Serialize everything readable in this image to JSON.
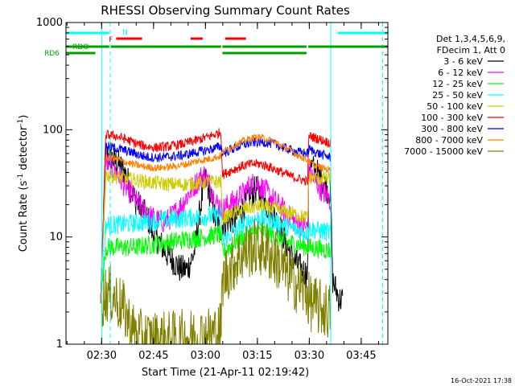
{
  "chart_data": {
    "type": "line",
    "title": "RHESSI Observing Summary Count Rates",
    "xlabel": "Start Time (21-Apr-11 02:19:42)",
    "ylabel": "Count Rate (s-1 detector-1)",
    "ylabel_parts": {
      "main": "Count Rate (s",
      "sup1": "-1",
      "mid": " detector",
      "sup2": "-1",
      "end": ")"
    },
    "yscale": "log",
    "ylim": [
      1,
      1000
    ],
    "xlim_minutes": [
      0,
      93
    ],
    "x_ticks": [
      {
        "label": "02:30",
        "min": 10.3
      },
      {
        "label": "02:45",
        "min": 25.3
      },
      {
        "label": "03:00",
        "min": 40.3
      },
      {
        "label": "03:15",
        "min": 55.3
      },
      {
        "label": "03:30",
        "min": 70.3
      },
      {
        "label": "03:45",
        "min": 85.3
      }
    ],
    "y_ticks": [
      {
        "label": "1",
        "value": 1
      },
      {
        "label": "10",
        "value": 10
      },
      {
        "label": "100",
        "value": 100
      },
      {
        "label": "1000",
        "value": 1000
      }
    ],
    "legend_header": [
      "Det 1,3,4,5,6,9,",
      "FDecim 1, Att 0"
    ],
    "legend_position": "right",
    "data_gaps_minutes": [
      [
        0,
        9.8
      ],
      [
        87.5,
        93
      ]
    ],
    "series": [
      {
        "name": "3 - 6 keV",
        "color": "#000000",
        "noise": 0.06,
        "points": [
          [
            10,
            2.4
          ],
          [
            11.5,
            60
          ],
          [
            13,
            55
          ],
          [
            15,
            48
          ],
          [
            17,
            40
          ],
          [
            20,
            22
          ],
          [
            22,
            18
          ],
          [
            24,
            14
          ],
          [
            25,
            11
          ],
          [
            27,
            9
          ],
          [
            29,
            7
          ],
          [
            31,
            6
          ],
          [
            33,
            5
          ],
          [
            35,
            5
          ],
          [
            37,
            7
          ],
          [
            39,
            20
          ],
          [
            40,
            35
          ],
          [
            41,
            30
          ],
          [
            42,
            22
          ],
          [
            43,
            15
          ],
          [
            44,
            13
          ],
          [
            44.8,
            12
          ],
          [
            45.2,
            13
          ],
          [
            47,
            14
          ],
          [
            49,
            15
          ],
          [
            51,
            18
          ],
          [
            53,
            24
          ],
          [
            55,
            28
          ],
          [
            56,
            26
          ],
          [
            58,
            20
          ],
          [
            60,
            16
          ],
          [
            62,
            12
          ],
          [
            64,
            8
          ],
          [
            66,
            6
          ],
          [
            68,
            5
          ],
          [
            69.8,
            4.5
          ],
          [
            70.2,
            48
          ],
          [
            71,
            45
          ],
          [
            73,
            38
          ],
          [
            75,
            30
          ],
          [
            76.5,
            25
          ],
          [
            77,
            4
          ],
          [
            79,
            2.6
          ],
          [
            80,
            2.6
          ]
        ]
      },
      {
        "name": "6 - 12 keV",
        "color": "#ff00ff",
        "noise": 0.05,
        "points": [
          [
            10,
            2.4
          ],
          [
            11.5,
            50
          ],
          [
            13,
            45
          ],
          [
            15,
            38
          ],
          [
            17,
            30
          ],
          [
            19,
            25
          ],
          [
            21,
            20
          ],
          [
            23,
            17
          ],
          [
            25,
            15
          ],
          [
            27,
            14
          ],
          [
            29,
            14
          ],
          [
            31,
            16
          ],
          [
            33,
            19
          ],
          [
            35,
            24
          ],
          [
            37,
            30
          ],
          [
            39,
            36
          ],
          [
            40,
            38
          ],
          [
            41,
            34
          ],
          [
            42,
            28
          ],
          [
            43,
            22
          ],
          [
            44,
            20
          ],
          [
            44.8,
            19
          ],
          [
            45.2,
            18
          ],
          [
            47,
            20
          ],
          [
            49,
            22
          ],
          [
            51,
            25
          ],
          [
            53,
            30
          ],
          [
            55,
            32
          ],
          [
            56,
            30
          ],
          [
            58,
            26
          ],
          [
            60,
            22
          ],
          [
            62,
            19
          ],
          [
            64,
            16
          ],
          [
            66,
            14
          ],
          [
            68,
            13
          ],
          [
            69.8,
            12
          ],
          [
            70.2,
            40
          ],
          [
            72,
            34
          ],
          [
            74,
            27
          ],
          [
            76.5,
            22
          ]
        ]
      },
      {
        "name": "12 - 25 keV",
        "color": "#00ff00",
        "noise": 0.04,
        "points": [
          [
            10,
            2.4
          ],
          [
            11.5,
            8
          ],
          [
            15,
            8
          ],
          [
            20,
            8
          ],
          [
            25,
            8.5
          ],
          [
            30,
            9
          ],
          [
            35,
            9.5
          ],
          [
            40,
            10
          ],
          [
            44,
            10.5
          ],
          [
            44.8,
            10.5
          ],
          [
            45.2,
            7
          ],
          [
            48,
            8.5
          ],
          [
            51,
            10
          ],
          [
            54,
            11
          ],
          [
            56,
            11.5
          ],
          [
            58,
            11
          ],
          [
            61,
            10
          ],
          [
            64,
            9
          ],
          [
            67,
            8.5
          ],
          [
            69.8,
            8
          ],
          [
            70.2,
            8
          ],
          [
            73,
            7.8
          ],
          [
            76.5,
            7.5
          ]
        ]
      },
      {
        "name": "25 - 50 keV",
        "color": "#00ffff",
        "noise": 0.04,
        "points": [
          [
            10,
            2.4
          ],
          [
            11.5,
            13
          ],
          [
            15,
            13
          ],
          [
            20,
            13.5
          ],
          [
            25,
            14
          ],
          [
            30,
            14.5
          ],
          [
            35,
            15
          ],
          [
            40,
            15.5
          ],
          [
            44,
            16
          ],
          [
            44.8,
            16
          ],
          [
            45.2,
            9
          ],
          [
            48,
            11
          ],
          [
            51,
            13
          ],
          [
            54,
            14.5
          ],
          [
            56,
            15
          ],
          [
            58,
            14.5
          ],
          [
            61,
            13.5
          ],
          [
            64,
            12.5
          ],
          [
            67,
            11.5
          ],
          [
            69.8,
            11
          ],
          [
            70.2,
            12
          ],
          [
            73,
            11.5
          ],
          [
            76.5,
            11
          ]
        ]
      },
      {
        "name": "50 - 100 keV",
        "color": "#cccc00",
        "noise": 0.03,
        "points": [
          [
            10,
            2.4
          ],
          [
            11.5,
            38
          ],
          [
            15,
            36
          ],
          [
            20,
            34
          ],
          [
            25,
            32
          ],
          [
            30,
            31
          ],
          [
            35,
            31
          ],
          [
            40,
            32
          ],
          [
            44,
            33
          ],
          [
            44.8,
            33
          ],
          [
            45.2,
            15
          ],
          [
            48,
            16.5
          ],
          [
            51,
            18
          ],
          [
            54,
            19
          ],
          [
            56,
            19.5
          ],
          [
            58,
            19
          ],
          [
            61,
            18
          ],
          [
            64,
            17
          ],
          [
            67,
            16
          ],
          [
            69.8,
            15
          ],
          [
            70.2,
            36
          ],
          [
            73,
            35
          ],
          [
            76.5,
            35
          ]
        ]
      },
      {
        "name": "100 - 300 keV",
        "color": "#ff0000",
        "noise": 0.02,
        "points": [
          [
            10,
            2.4
          ],
          [
            11.5,
            90
          ],
          [
            14,
            88
          ],
          [
            17,
            82
          ],
          [
            20,
            75
          ],
          [
            23,
            70
          ],
          [
            26,
            68
          ],
          [
            30,
            70
          ],
          [
            34,
            74
          ],
          [
            38,
            80
          ],
          [
            42,
            88
          ],
          [
            44.8,
            95
          ],
          [
            45.2,
            38
          ],
          [
            48,
            42
          ],
          [
            51,
            46
          ],
          [
            54,
            48
          ],
          [
            56,
            48
          ],
          [
            58,
            46
          ],
          [
            61,
            42
          ],
          [
            64,
            38
          ],
          [
            67,
            35
          ],
          [
            69.8,
            33
          ],
          [
            70.2,
            88
          ],
          [
            73,
            82
          ],
          [
            76.5,
            75
          ]
        ]
      },
      {
        "name": "300 - 800 keV",
        "color": "#0000ff",
        "noise": 0.02,
        "points": [
          [
            10,
            2.4
          ],
          [
            11.5,
            70
          ],
          [
            14,
            68
          ],
          [
            17,
            64
          ],
          [
            20,
            60
          ],
          [
            23,
            56
          ],
          [
            26,
            55
          ],
          [
            30,
            56
          ],
          [
            34,
            58
          ],
          [
            38,
            62
          ],
          [
            42,
            66
          ],
          [
            44.8,
            70
          ],
          [
            45.2,
            60
          ],
          [
            48,
            66
          ],
          [
            51,
            72
          ],
          [
            54,
            76
          ],
          [
            56,
            77
          ],
          [
            58,
            76
          ],
          [
            61,
            72
          ],
          [
            64,
            66
          ],
          [
            67,
            62
          ],
          [
            69.8,
            60
          ],
          [
            70.2,
            66
          ],
          [
            73,
            60
          ],
          [
            76.5,
            55
          ]
        ]
      },
      {
        "name": "800 - 7000 keV",
        "color": "#ff8000",
        "noise": 0.015,
        "points": [
          [
            10,
            2.4
          ],
          [
            11.5,
            55
          ],
          [
            14,
            54
          ],
          [
            17,
            50
          ],
          [
            20,
            47
          ],
          [
            23,
            45
          ],
          [
            26,
            44
          ],
          [
            30,
            45
          ],
          [
            34,
            47
          ],
          [
            38,
            51
          ],
          [
            42,
            54
          ],
          [
            44.8,
            57
          ],
          [
            45.2,
            62
          ],
          [
            48,
            70
          ],
          [
            51,
            78
          ],
          [
            54,
            84
          ],
          [
            56,
            85
          ],
          [
            58,
            82
          ],
          [
            61,
            75
          ],
          [
            64,
            66
          ],
          [
            67,
            58
          ],
          [
            69.8,
            52
          ],
          [
            70.2,
            50
          ],
          [
            73,
            45
          ],
          [
            76.5,
            42
          ]
        ]
      },
      {
        "name": "7000 - 15000 keV",
        "color": "#808000",
        "noise": 0.12,
        "points": [
          [
            10,
            2.4
          ],
          [
            11.5,
            3
          ],
          [
            14,
            2.8
          ],
          [
            17,
            2
          ],
          [
            19,
            1.4
          ],
          [
            21,
            1.15
          ],
          [
            25,
            1.1
          ],
          [
            30,
            1.1
          ],
          [
            35,
            1.15
          ],
          [
            40,
            1.2
          ],
          [
            44,
            1.3
          ],
          [
            44.8,
            1.4
          ],
          [
            45.2,
            4
          ],
          [
            48,
            5.5
          ],
          [
            51,
            7
          ],
          [
            54,
            8
          ],
          [
            56,
            8
          ],
          [
            58,
            7.5
          ],
          [
            61,
            6
          ],
          [
            64,
            4.5
          ],
          [
            67,
            3.5
          ],
          [
            69.8,
            3
          ],
          [
            70.2,
            2.5
          ],
          [
            73,
            2.2
          ],
          [
            76.5,
            2
          ]
        ]
      }
    ],
    "state_bars": [
      {
        "label": "N",
        "color": "#00ffff",
        "segments": [
          [
            0,
            12.5
          ],
          [
            78.5,
            93
          ]
        ]
      },
      {
        "label": "F",
        "color": "#ff0000",
        "segments": [
          [
            14.5,
            22
          ],
          [
            36,
            39.5
          ],
          [
            46,
            52
          ]
        ]
      },
      {
        "label": "RDO",
        "color": "#00a000",
        "segments": [
          [
            0,
            12.5
          ],
          [
            13,
            44.8
          ],
          [
            45.2,
            69.5
          ],
          [
            70,
            93
          ]
        ]
      },
      {
        "label": "RD6",
        "color": "#00a000",
        "segments": [
          [
            0,
            8.5
          ],
          [
            45.2,
            69.5
          ]
        ]
      }
    ],
    "vertical_markers_minutes": {
      "solid_cyan": [
        10.3,
        76.5
      ],
      "dashed_cyan": [
        12.8,
        91.5
      ]
    }
  },
  "footer": {
    "timestamp": "16-Oct-2021 17:38"
  }
}
